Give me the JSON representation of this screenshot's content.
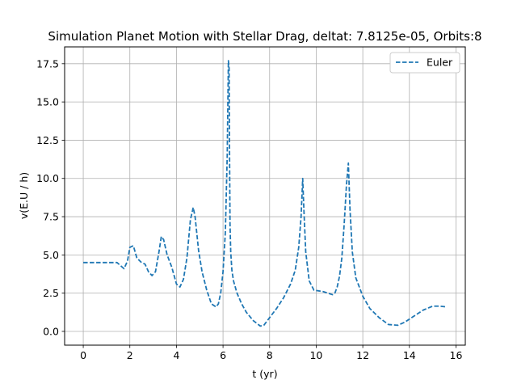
{
  "chart_data": {
    "type": "line",
    "title": "Simulation Planet Motion with Stellar Drag, deltat: 7.8125e-05, Orbits:8",
    "xlabel": "t (yr)",
    "ylabel": "v(E.U / h)",
    "xlim": [
      -0.8,
      16.4
    ],
    "ylim": [
      -0.9,
      18.6
    ],
    "xticks": [
      0,
      2,
      4,
      6,
      8,
      10,
      12,
      14,
      16
    ],
    "yticks": [
      0.0,
      2.5,
      5.0,
      7.5,
      10.0,
      12.5,
      15.0,
      17.5
    ],
    "xtick_labels": [
      "0",
      "2",
      "4",
      "6",
      "8",
      "10",
      "12",
      "14",
      "16"
    ],
    "ytick_labels": [
      "0.0",
      "2.5",
      "5.0",
      "7.5",
      "10.0",
      "12.5",
      "15.0",
      "17.5"
    ],
    "grid": true,
    "legend_position": "top-right",
    "series": [
      {
        "name": "Euler",
        "color": "#1f77b4",
        "linestyle": "dashed",
        "x": [
          0.0,
          0.5,
          1.0,
          1.45,
          1.6,
          1.75,
          1.9,
          2.0,
          2.15,
          2.3,
          2.5,
          2.65,
          2.8,
          2.95,
          3.1,
          3.25,
          3.35,
          3.45,
          3.6,
          3.8,
          4.0,
          4.15,
          4.3,
          4.45,
          4.6,
          4.72,
          4.8,
          4.95,
          5.1,
          5.3,
          5.5,
          5.7,
          5.8,
          5.9,
          6.0,
          6.1,
          6.18,
          6.23,
          6.26,
          6.28,
          6.3,
          6.33,
          6.38,
          6.45,
          6.6,
          6.8,
          7.0,
          7.3,
          7.6,
          7.75,
          8.0,
          8.3,
          8.6,
          8.9,
          9.1,
          9.25,
          9.35,
          9.42,
          9.47,
          9.55,
          9.7,
          9.9,
          10.1,
          10.3,
          10.5,
          10.7,
          10.8,
          10.9,
          11.0,
          11.1,
          11.2,
          11.3,
          11.38,
          11.45,
          11.55,
          11.7,
          12.0,
          12.3,
          12.7,
          13.1,
          13.5,
          13.8,
          14.2,
          14.6,
          15.0,
          15.3,
          15.6
        ],
        "y": [
          4.5,
          4.5,
          4.5,
          4.5,
          4.3,
          4.1,
          4.6,
          5.5,
          5.6,
          4.8,
          4.5,
          4.4,
          3.9,
          3.65,
          3.9,
          5.2,
          6.2,
          6.0,
          5.0,
          4.2,
          3.1,
          2.9,
          3.4,
          4.8,
          7.3,
          8.1,
          7.5,
          5.3,
          3.9,
          2.7,
          1.8,
          1.6,
          1.8,
          2.5,
          3.9,
          6.5,
          11.5,
          17.7,
          17.2,
          11.5,
          7.0,
          5.2,
          4.0,
          3.3,
          2.5,
          1.8,
          1.25,
          0.7,
          0.35,
          0.4,
          0.9,
          1.5,
          2.2,
          3.1,
          4.0,
          5.5,
          7.5,
          10.0,
          8.0,
          5.2,
          3.3,
          2.7,
          2.65,
          2.6,
          2.5,
          2.4,
          2.5,
          2.9,
          3.6,
          4.8,
          7.0,
          9.6,
          11.0,
          8.0,
          5.2,
          3.5,
          2.3,
          1.5,
          0.9,
          0.45,
          0.4,
          0.6,
          1.0,
          1.4,
          1.65,
          1.65,
          1.6
        ]
      }
    ]
  }
}
